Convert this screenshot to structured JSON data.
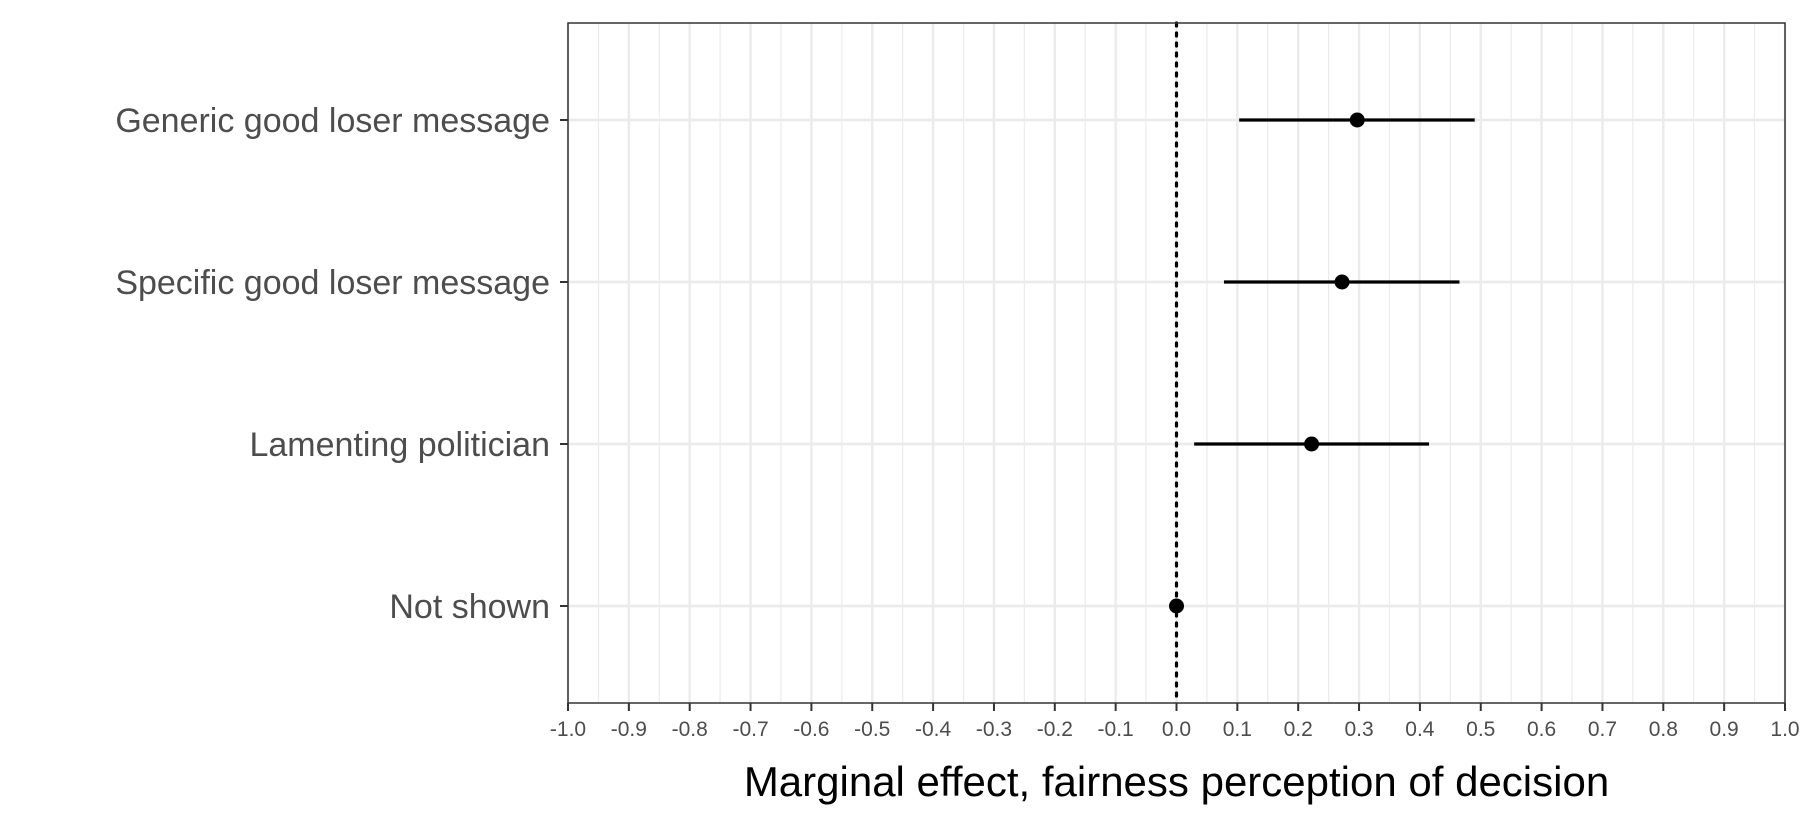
{
  "chart_data": {
    "type": "scatter",
    "title": "",
    "xlabel": "Marginal effect, fairness perception of decision",
    "ylabel": "",
    "xlim": [
      -1.0,
      1.0
    ],
    "x_ticks": [
      -1.0,
      -0.9,
      -0.8,
      -0.7,
      -0.6,
      -0.5,
      -0.4,
      -0.3,
      -0.2,
      -0.1,
      0.0,
      0.1,
      0.2,
      0.3,
      0.4,
      0.5,
      0.6,
      0.7,
      0.8,
      0.9,
      1.0
    ],
    "x_tick_labels": [
      "-1.0",
      "-0.9",
      "-0.8",
      "-0.7",
      "-0.6",
      "-0.5",
      "-0.4",
      "-0.3",
      "-0.2",
      "-0.1",
      "0.0",
      "0.1",
      "0.2",
      "0.3",
      "0.4",
      "0.5",
      "0.6",
      "0.7",
      "0.8",
      "0.9",
      "1.0"
    ],
    "reference_line": 0.0,
    "grid": true,
    "categories": [
      "Generic good loser message",
      "Specific good loser message",
      "Lamenting politician",
      "Not shown"
    ],
    "estimates": [
      0.297,
      0.272,
      0.222,
      0.0
    ],
    "ci_low": [
      0.103,
      0.078,
      0.029,
      0.0
    ],
    "ci_high": [
      0.49,
      0.465,
      0.415,
      0.0
    ]
  },
  "colors": {
    "point": "#000000",
    "grid": "#ebebeb",
    "axis_text": "#4d4d4d",
    "panel_border": "#333333"
  }
}
